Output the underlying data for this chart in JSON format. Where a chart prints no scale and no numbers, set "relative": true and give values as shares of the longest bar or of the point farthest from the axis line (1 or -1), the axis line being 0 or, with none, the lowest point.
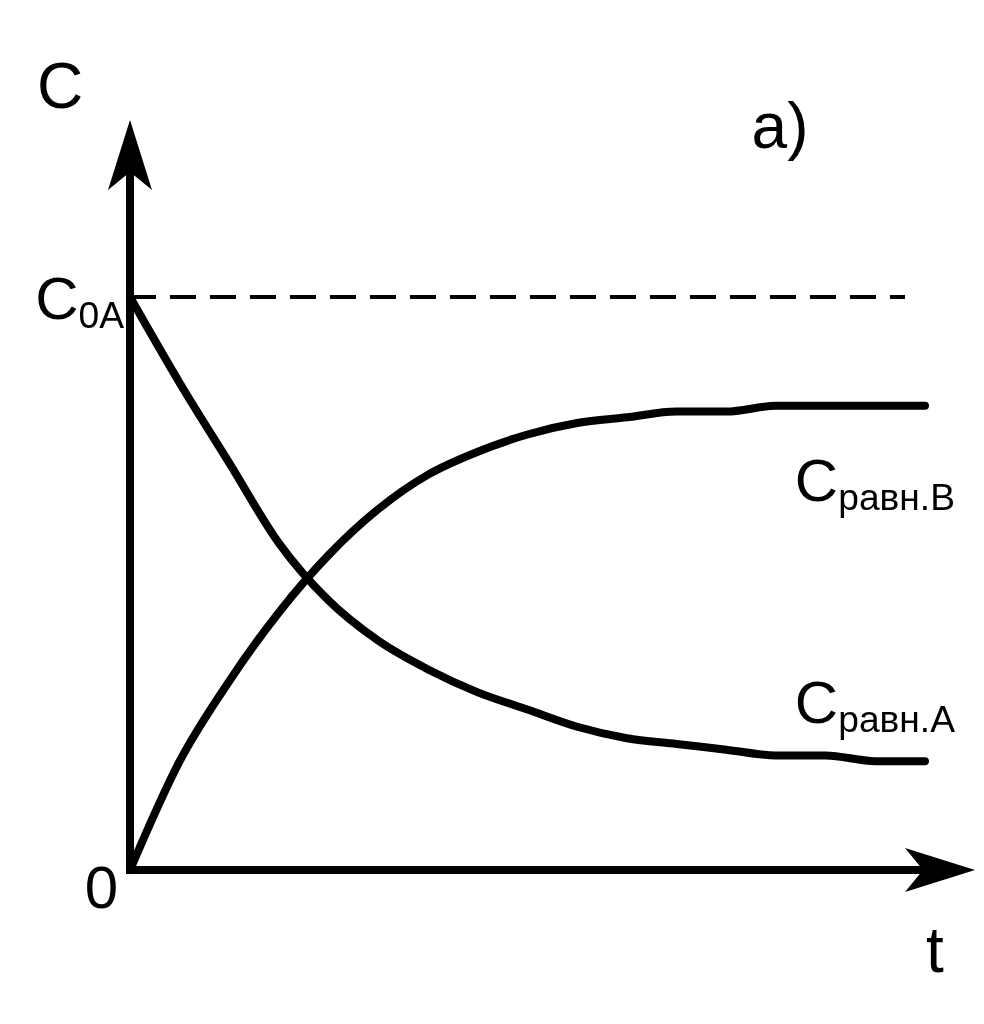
{
  "chart_data": {
    "type": "line",
    "title": "a)",
    "xlabel": "t",
    "ylabel": "C",
    "relative": true,
    "categories": [
      null,
      null,
      null,
      null,
      null,
      null,
      null,
      null,
      null,
      null,
      null,
      null,
      null,
      null,
      null,
      null,
      null
    ],
    "series": [
      {
        "name": "C$_{равн.B}$",
        "color": "#000000",
        "values": [
          0,
          0.19,
          0.33,
          0.45,
          0.55,
          0.63,
          0.69,
          0.73,
          0.76,
          0.78,
          0.79,
          0.8,
          0.8,
          0.81,
          0.81,
          0.81,
          0.81
        ]
      },
      {
        "name": "C$_{равн.A}$",
        "color": "#000000",
        "values": [
          1.0,
          0.85,
          0.71,
          0.57,
          0.47,
          0.4,
          0.35,
          0.31,
          0.28,
          0.25,
          0.23,
          0.22,
          0.21,
          0.2,
          0.2,
          0.19,
          0.19
        ]
      }
    ],
    "annotations": [
      "0"
    ],
    "ref_lines": [
      {
        "axis": "y",
        "value": 1,
        "label": "C$_{0A}$",
        "color": "#000000",
        "line_style": "dashed"
      }
    ],
    "line_style": "solid",
    "marker": "none",
    "legend": false
  }
}
